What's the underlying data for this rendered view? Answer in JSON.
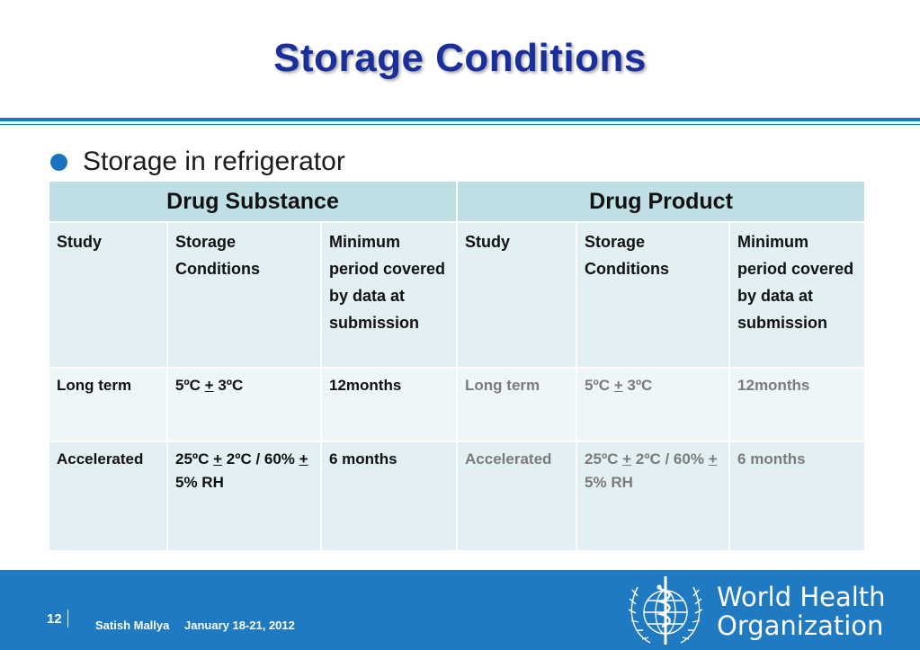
{
  "slide": {
    "title": "Storage Conditions",
    "bullet": "Storage in refrigerator"
  },
  "table": {
    "groups": {
      "drug_substance": "Drug Substance",
      "drug_product": "Drug Product"
    },
    "headers": {
      "study": "Study",
      "storage_conditions": "Storage Conditions",
      "minimum_period": "Minimum period covered by data at submission"
    },
    "rows": [
      {
        "study": "Long term",
        "cond_pre": "5ºC ",
        "cond_pm": "+",
        "cond_post": " 3ºC",
        "cond_pm2": "",
        "cond_tail": "",
        "period": "12months"
      },
      {
        "study": "Accelerated",
        "cond_pre": "25ºC ",
        "cond_pm": "+",
        "cond_post": " 2ºC / 60% ",
        "cond_pm2": "+",
        "cond_tail": " 5% RH",
        "period": "6 months"
      }
    ]
  },
  "footer": {
    "page_number": "12",
    "author": "Satish Mallya",
    "date": "January 18-21, 2012",
    "org_line1": "World Health",
    "org_line2": "Organization"
  },
  "colors": {
    "title": "#1a2f9b",
    "accent_blue": "#1f7ac2",
    "drug_substance": "#ff3300",
    "drug_product": "#008a2e",
    "table_header_bg": "#bfdfe5"
  },
  "icons": {
    "bullet": "circle-bullet-icon",
    "logo": "who-emblem-icon"
  }
}
